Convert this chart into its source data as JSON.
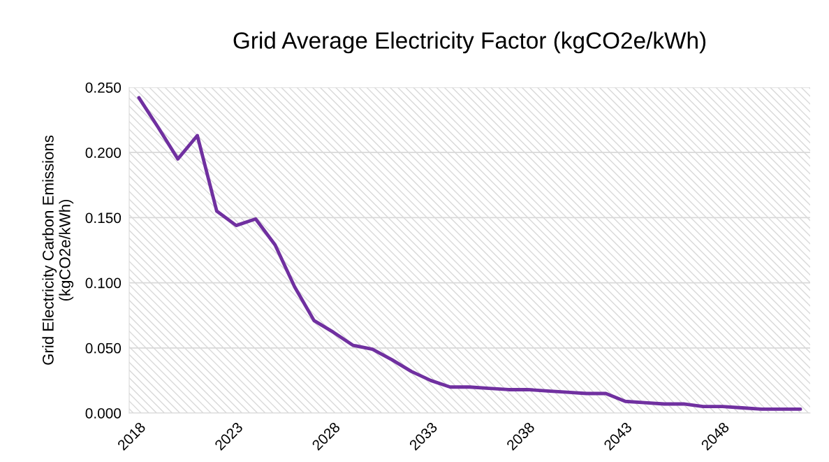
{
  "chart_data": {
    "type": "line",
    "title": "Grid Average Electricity Factor (kgCO2e/kWh)",
    "ylabel": "Grid Electricity Carbon Emissions\n(kgCO2e/kWh)",
    "x": [
      2018,
      2019,
      2020,
      2021,
      2022,
      2023,
      2024,
      2025,
      2026,
      2027,
      2028,
      2029,
      2030,
      2031,
      2032,
      2033,
      2034,
      2035,
      2036,
      2037,
      2038,
      2039,
      2040,
      2041,
      2042,
      2043,
      2044,
      2045,
      2046,
      2047,
      2048,
      2049,
      2050,
      2051,
      2052
    ],
    "series": [
      {
        "color": "#7030a0",
        "values": [
          0.242,
          0.219,
          0.195,
          0.213,
          0.155,
          0.144,
          0.149,
          0.129,
          0.097,
          0.071,
          0.062,
          0.052,
          0.049,
          0.041,
          0.032,
          0.025,
          0.02,
          0.02,
          0.019,
          0.018,
          0.018,
          0.017,
          0.016,
          0.015,
          0.015,
          0.009,
          0.008,
          0.007,
          0.007,
          0.005,
          0.005,
          0.004,
          0.003,
          0.003,
          0.003
        ]
      }
    ],
    "xlim": [
      2017.5,
      2052.5
    ],
    "xticks": [
      2018,
      2023,
      2028,
      2033,
      2038,
      2043,
      2048
    ],
    "ylim": [
      0,
      0.25
    ],
    "yticks": [
      {
        "value": 0,
        "label": "0.000"
      },
      {
        "value": 0.05,
        "label": "0.050"
      },
      {
        "value": 0.1,
        "label": "0.100"
      },
      {
        "value": 0.15,
        "label": "0.150"
      },
      {
        "value": 0.2,
        "label": "0.200"
      },
      {
        "value": 0.25,
        "label": "0.250"
      }
    ],
    "grid": "y",
    "legend": false,
    "marker": "none",
    "line_style": "solid"
  }
}
